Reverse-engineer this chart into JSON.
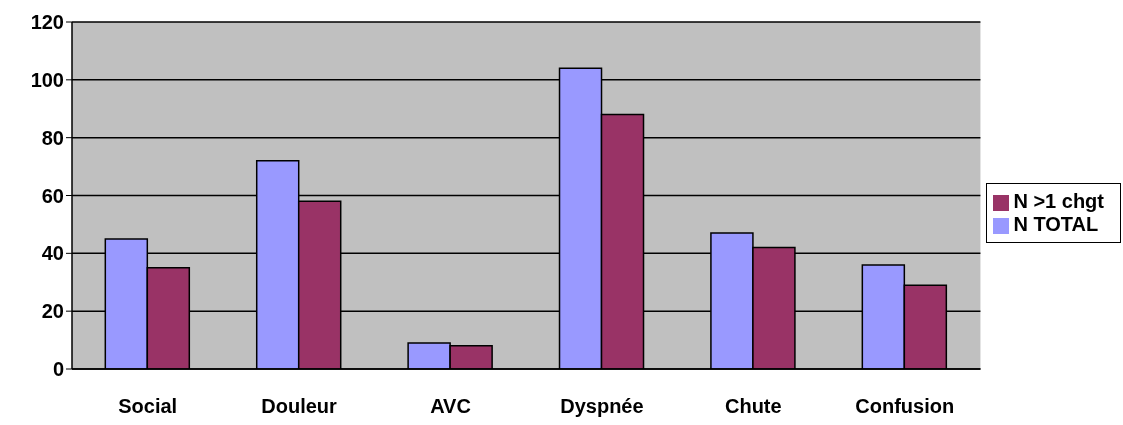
{
  "chart_data": {
    "type": "bar",
    "categories": [
      "Social",
      "Douleur",
      "AVC",
      "Dyspnée",
      "Chute",
      "Confusion"
    ],
    "series": [
      {
        "name": "N TOTAL",
        "color": "#9999ff",
        "values": [
          45,
          72,
          9,
          104,
          47,
          36
        ]
      },
      {
        "name": "N >1 chgt",
        "color": "#993366",
        "values": [
          35,
          58,
          8,
          88,
          42,
          29
        ]
      }
    ],
    "ylim": [
      0,
      120
    ],
    "yticks": [
      0,
      20,
      40,
      60,
      80,
      100,
      120
    ],
    "grid": "y",
    "legend": "right"
  }
}
